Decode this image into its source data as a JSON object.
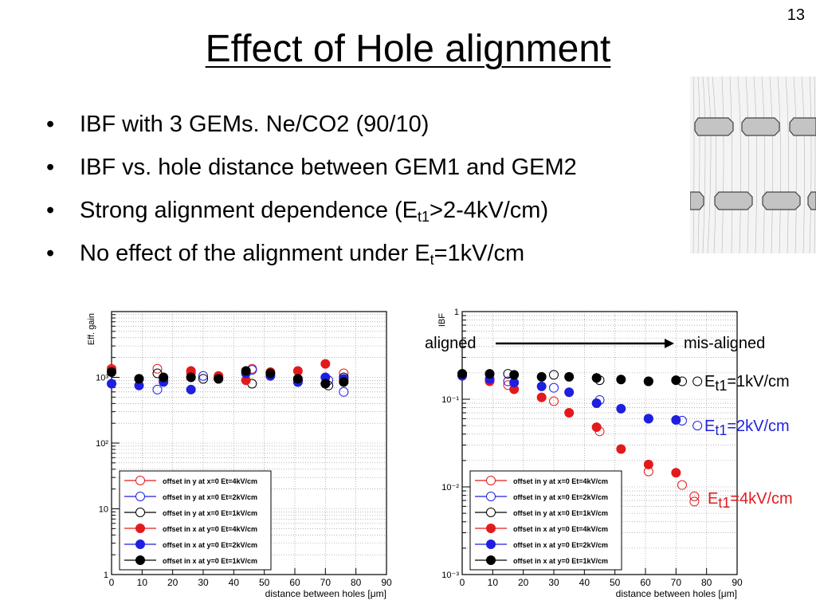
{
  "slide": {
    "number": "13",
    "title": "Effect of Hole alignment",
    "bullets": [
      {
        "text": "IBF with 3 GEMs. Ne/CO2 (90/10)"
      },
      {
        "text": "IBF vs. hole distance between GEM1 and GEM2"
      },
      {
        "pre": "Strong alignment dependence (E",
        "sub": "t1",
        "post": ">2-4kV/cm)"
      },
      {
        "pre": "No effect of the alignment under E",
        "sub": "t",
        "post": "=1kV/cm"
      }
    ]
  },
  "annotations": {
    "aligned": "aligned",
    "misaligned": "mis-aligned",
    "e1_pre": "E",
    "e1_sub": "t1",
    "e1_post": "=1kV/cm",
    "e2_pre": "E",
    "e2_sub": "t1",
    "e2_post": "=2kV/cm",
    "e3_pre": "E",
    "e3_sub": "t1",
    "e3_post": "=4kV/cm"
  },
  "chart_data": [
    {
      "type": "scatter",
      "ylabel": "Eff. gain",
      "xlabel": "distance between holes [μm]",
      "xlim": [
        0,
        90
      ],
      "ylim": [
        1,
        10000
      ],
      "yscale": "log",
      "grid": true,
      "xticks": [
        "0",
        "10",
        "20",
        "30",
        "40",
        "50",
        "60",
        "70",
        "80",
        "90"
      ],
      "yticks": [
        {
          "v": 1,
          "t": "1"
        },
        {
          "v": 10,
          "t": "10"
        },
        {
          "v": 100,
          "t": "10²"
        },
        {
          "v": 1000,
          "t": "10³"
        }
      ],
      "legend_position": "bottom-center",
      "series": [
        {
          "name": "offset in y at x=0 Et=4kV/cm",
          "color": "#e31a1c",
          "filled": false,
          "points": [
            [
              0,
              1350
            ],
            [
              15,
              1350
            ],
            [
              26,
              1150
            ],
            [
              35,
              1000
            ],
            [
              46,
              1350
            ],
            [
              61,
              950
            ],
            [
              76,
              1150
            ]
          ]
        },
        {
          "name": "offset in y at x=0 Et=2kV/cm",
          "color": "#1f1fe0",
          "filled": false,
          "points": [
            [
              15,
              650
            ],
            [
              30,
              1050
            ],
            [
              46,
              1300
            ],
            [
              61,
              850
            ],
            [
              71,
              900
            ],
            [
              76,
              600
            ]
          ]
        },
        {
          "name": "offset in y at x=0 Et=1kV/cm",
          "color": "#000000",
          "filled": false,
          "points": [
            [
              0,
              1250
            ],
            [
              15,
              1150
            ],
            [
              30,
              950
            ],
            [
              46,
              800
            ],
            [
              61,
              900
            ],
            [
              71,
              750
            ],
            [
              76,
              1000
            ]
          ]
        },
        {
          "name": "offset in x at y=0 Et=4kV/cm",
          "color": "#e31a1c",
          "filled": true,
          "points": [
            [
              0,
              1300
            ],
            [
              9,
              950
            ],
            [
              17,
              900
            ],
            [
              26,
              1250
            ],
            [
              35,
              1050
            ],
            [
              44,
              900
            ],
            [
              52,
              1200
            ],
            [
              61,
              1250
            ],
            [
              70,
              1600
            ],
            [
              76,
              900
            ]
          ]
        },
        {
          "name": "offset in x at y=0 Et=2kV/cm",
          "color": "#1f1fe0",
          "filled": true,
          "points": [
            [
              0,
              800
            ],
            [
              9,
              750
            ],
            [
              17,
              850
            ],
            [
              26,
              650
            ],
            [
              35,
              950
            ],
            [
              44,
              1150
            ],
            [
              52,
              1050
            ],
            [
              61,
              850
            ],
            [
              70,
              1000
            ],
            [
              76,
              950
            ]
          ]
        },
        {
          "name": "offset in x at y=0 Et=1kV/cm",
          "color": "#000000",
          "filled": true,
          "points": [
            [
              0,
              1200
            ],
            [
              9,
              950
            ],
            [
              17,
              1000
            ],
            [
              26,
              1000
            ],
            [
              35,
              950
            ],
            [
              44,
              1250
            ],
            [
              52,
              1150
            ],
            [
              61,
              950
            ],
            [
              70,
              800
            ],
            [
              76,
              850
            ]
          ]
        }
      ]
    },
    {
      "type": "scatter",
      "ylabel": "IBF",
      "xlabel": "distance between holes [μm]",
      "xlim": [
        0,
        90
      ],
      "ylim": [
        0.001,
        1
      ],
      "yscale": "log",
      "grid": true,
      "xticks": [
        "0",
        "10",
        "20",
        "30",
        "40",
        "50",
        "60",
        "70",
        "80",
        "90"
      ],
      "yticks": [
        {
          "v": 0.001,
          "t": "10⁻³"
        },
        {
          "v": 0.01,
          "t": "10⁻²"
        },
        {
          "v": 0.1,
          "t": "10⁻¹"
        },
        {
          "v": 1,
          "t": "1"
        }
      ],
      "legend_position": "bottom-center",
      "series": [
        {
          "name": "offset in y at x=0 Et=4kV/cm",
          "color": "#e31a1c",
          "filled": false,
          "points": [
            [
              0,
              0.19
            ],
            [
              15,
              0.145
            ],
            [
              30,
              0.095
            ],
            [
              45,
              0.043
            ],
            [
              61,
              0.015
            ],
            [
              72,
              0.0105
            ],
            [
              76,
              0.0078
            ],
            [
              76,
              0.0068
            ]
          ]
        },
        {
          "name": "offset in y at x=0 Et=2kV/cm",
          "color": "#1f1fe0",
          "filled": false,
          "points": [
            [
              0,
              0.185
            ],
            [
              15,
              0.16
            ],
            [
              30,
              0.135
            ],
            [
              45,
              0.098
            ],
            [
              61,
              0.06
            ],
            [
              72,
              0.057
            ],
            [
              77,
              0.05
            ]
          ]
        },
        {
          "name": "offset in y at x=0 Et=1kV/cm",
          "color": "#000000",
          "filled": false,
          "points": [
            [
              0,
              0.195
            ],
            [
              15,
              0.195
            ],
            [
              30,
              0.19
            ],
            [
              45,
              0.165
            ],
            [
              61,
              0.16
            ],
            [
              72,
              0.16
            ],
            [
              77,
              0.16
            ]
          ]
        },
        {
          "name": "offset in x at y=0 Et=4kV/cm",
          "color": "#e31a1c",
          "filled": true,
          "points": [
            [
              0,
              0.19
            ],
            [
              9,
              0.16
            ],
            [
              17,
              0.13
            ],
            [
              26,
              0.105
            ],
            [
              35,
              0.07
            ],
            [
              44,
              0.048
            ],
            [
              52,
              0.027
            ],
            [
              61,
              0.018
            ],
            [
              70,
              0.0145
            ]
          ]
        },
        {
          "name": "offset in x at y=0 Et=2kV/cm",
          "color": "#1f1fe0",
          "filled": true,
          "points": [
            [
              0,
              0.19
            ],
            [
              9,
              0.17
            ],
            [
              17,
              0.155
            ],
            [
              26,
              0.14
            ],
            [
              35,
              0.12
            ],
            [
              44,
              0.09
            ],
            [
              52,
              0.078
            ],
            [
              61,
              0.06
            ],
            [
              70,
              0.058
            ]
          ]
        },
        {
          "name": "offset in x at y=0 Et=1kV/cm",
          "color": "#000000",
          "filled": true,
          "points": [
            [
              0,
              0.195
            ],
            [
              9,
              0.195
            ],
            [
              17,
              0.19
            ],
            [
              26,
              0.18
            ],
            [
              35,
              0.18
            ],
            [
              44,
              0.175
            ],
            [
              52,
              0.168
            ],
            [
              61,
              0.16
            ],
            [
              70,
              0.165
            ]
          ]
        }
      ]
    }
  ]
}
